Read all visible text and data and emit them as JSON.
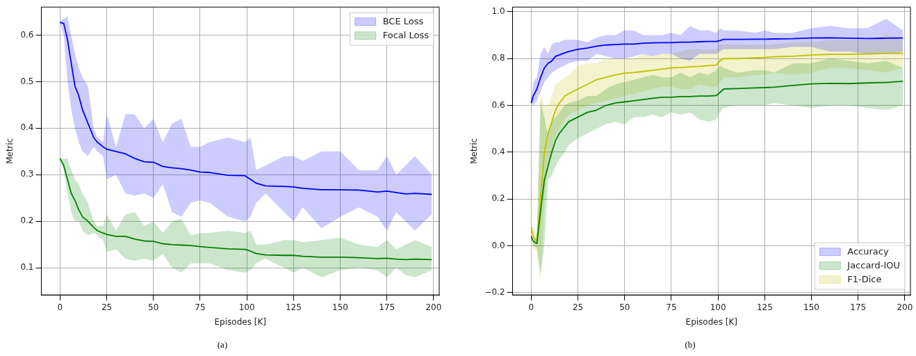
{
  "chart_data": [
    {
      "type": "line",
      "xlabel": "Episodes [K]",
      "ylabel": "Metric",
      "annotations": [
        "(a)"
      ],
      "x": [
        0,
        2,
        4,
        6,
        8,
        10,
        12,
        15,
        18,
        20,
        23,
        25,
        30,
        35,
        40,
        45,
        50,
        55,
        60,
        65,
        70,
        75,
        80,
        90,
        99,
        102,
        105,
        110,
        120,
        125,
        130,
        140,
        150,
        160,
        170,
        175,
        180,
        185,
        190,
        199
      ],
      "series": [
        {
          "name": "BCE Loss",
          "color": "#0000ff",
          "values": [
            0.627,
            0.625,
            0.59,
            0.54,
            0.49,
            0.47,
            0.44,
            0.41,
            0.38,
            0.37,
            0.36,
            0.355,
            0.35,
            0.345,
            0.335,
            0.328,
            0.327,
            0.318,
            0.315,
            0.313,
            0.31,
            0.306,
            0.305,
            0.299,
            0.298,
            0.29,
            0.282,
            0.276,
            0.275,
            0.274,
            0.271,
            0.268,
            0.268,
            0.267,
            0.263,
            0.265,
            0.262,
            0.259,
            0.26,
            0.258
          ],
          "lower": [
            0.627,
            0.6,
            0.5,
            0.44,
            0.4,
            0.37,
            0.35,
            0.34,
            0.36,
            0.35,
            0.34,
            0.29,
            0.3,
            0.26,
            0.255,
            0.26,
            0.25,
            0.28,
            0.22,
            0.21,
            0.24,
            0.245,
            0.24,
            0.21,
            0.2,
            0.21,
            0.24,
            0.26,
            0.22,
            0.2,
            0.23,
            0.185,
            0.21,
            0.23,
            0.21,
            0.18,
            0.22,
            0.2,
            0.18,
            0.215
          ],
          "upper": [
            0.63,
            0.635,
            0.64,
            0.6,
            0.56,
            0.53,
            0.51,
            0.49,
            0.4,
            0.38,
            0.37,
            0.43,
            0.36,
            0.43,
            0.43,
            0.4,
            0.42,
            0.37,
            0.41,
            0.42,
            0.36,
            0.36,
            0.37,
            0.38,
            0.37,
            0.38,
            0.31,
            0.32,
            0.34,
            0.34,
            0.33,
            0.35,
            0.35,
            0.31,
            0.31,
            0.34,
            0.3,
            0.32,
            0.34,
            0.3
          ]
        },
        {
          "name": "Focal Loss",
          "color": "#008000",
          "values": [
            0.335,
            0.32,
            0.29,
            0.26,
            0.245,
            0.225,
            0.21,
            0.2,
            0.187,
            0.18,
            0.175,
            0.172,
            0.168,
            0.168,
            0.162,
            0.158,
            0.157,
            0.152,
            0.15,
            0.149,
            0.148,
            0.146,
            0.144,
            0.141,
            0.14,
            0.136,
            0.131,
            0.128,
            0.127,
            0.127,
            0.125,
            0.123,
            0.123,
            0.122,
            0.12,
            0.121,
            0.119,
            0.118,
            0.119,
            0.118
          ],
          "lower": [
            0.335,
            0.31,
            0.26,
            0.22,
            0.2,
            0.2,
            0.18,
            0.17,
            0.175,
            0.17,
            0.16,
            0.135,
            0.14,
            0.12,
            0.115,
            0.12,
            0.115,
            0.13,
            0.1,
            0.09,
            0.11,
            0.11,
            0.11,
            0.095,
            0.09,
            0.095,
            0.11,
            0.12,
            0.1,
            0.09,
            0.1,
            0.08,
            0.095,
            0.1,
            0.095,
            0.08,
            0.1,
            0.085,
            0.08,
            0.095
          ],
          "upper": [
            0.335,
            0.335,
            0.335,
            0.31,
            0.29,
            0.28,
            0.26,
            0.24,
            0.2,
            0.19,
            0.19,
            0.215,
            0.18,
            0.215,
            0.22,
            0.19,
            0.2,
            0.175,
            0.2,
            0.205,
            0.17,
            0.175,
            0.175,
            0.18,
            0.175,
            0.18,
            0.15,
            0.15,
            0.16,
            0.16,
            0.155,
            0.16,
            0.165,
            0.15,
            0.145,
            0.16,
            0.14,
            0.15,
            0.16,
            0.145
          ]
        }
      ],
      "xlim": [
        -10,
        203
      ],
      "ylim": [
        0.042,
        0.66
      ],
      "xticks": [
        0,
        25,
        50,
        75,
        100,
        125,
        150,
        175,
        200
      ],
      "yticks": [
        0.1,
        0.2,
        0.3,
        0.4,
        0.5,
        0.6
      ],
      "grid": true,
      "legend": "top right",
      "marker": "none",
      "line_style": "solid"
    },
    {
      "type": "line",
      "xlabel": "Episodes [K]",
      "ylabel": "Metric",
      "annotations": [
        "(b)"
      ],
      "x": [
        0,
        1,
        3,
        5,
        7,
        9,
        11,
        13,
        15,
        18,
        20,
        25,
        30,
        35,
        40,
        45,
        50,
        55,
        60,
        65,
        70,
        75,
        80,
        85,
        90,
        95,
        99,
        101,
        103,
        110,
        120,
        125,
        130,
        140,
        150,
        160,
        170,
        180,
        190,
        199
      ],
      "series": [
        {
          "name": "Accuracy",
          "color": "#0000ff",
          "values": [
            0.61,
            0.64,
            0.67,
            0.72,
            0.76,
            0.78,
            0.79,
            0.81,
            0.815,
            0.825,
            0.83,
            0.84,
            0.845,
            0.853,
            0.858,
            0.86,
            0.862,
            0.862,
            0.866,
            0.867,
            0.868,
            0.868,
            0.87,
            0.87,
            0.872,
            0.873,
            0.873,
            0.877,
            0.882,
            0.882,
            0.883,
            0.883,
            0.884,
            0.885,
            0.888,
            0.889,
            0.887,
            0.886,
            0.887,
            0.888
          ],
          "lower": [
            0.61,
            0.6,
            0.62,
            0.66,
            0.7,
            0.72,
            0.74,
            0.75,
            0.76,
            0.77,
            0.78,
            0.79,
            0.79,
            0.82,
            0.81,
            0.8,
            0.8,
            0.81,
            0.82,
            0.81,
            0.82,
            0.82,
            0.8,
            0.79,
            0.82,
            0.82,
            0.82,
            0.83,
            0.84,
            0.84,
            0.84,
            0.84,
            0.84,
            0.85,
            0.85,
            0.83,
            0.83,
            0.82,
            0.82,
            0.83
          ],
          "upper": [
            0.61,
            0.7,
            0.72,
            0.82,
            0.85,
            0.82,
            0.86,
            0.87,
            0.87,
            0.88,
            0.88,
            0.88,
            0.87,
            0.89,
            0.9,
            0.9,
            0.92,
            0.92,
            0.9,
            0.9,
            0.9,
            0.91,
            0.9,
            0.94,
            0.92,
            0.92,
            0.91,
            0.93,
            0.92,
            0.92,
            0.91,
            0.92,
            0.91,
            0.91,
            0.93,
            0.94,
            0.93,
            0.93,
            0.97,
            0.92
          ]
        },
        {
          "name": "Jaccard-IOU",
          "color": "#008000",
          "values": [
            0.04,
            0.02,
            0.01,
            0.15,
            0.28,
            0.34,
            0.4,
            0.45,
            0.48,
            0.51,
            0.53,
            0.55,
            0.57,
            0.58,
            0.6,
            0.61,
            0.615,
            0.62,
            0.625,
            0.63,
            0.635,
            0.635,
            0.638,
            0.638,
            0.64,
            0.64,
            0.642,
            0.655,
            0.67,
            0.672,
            0.675,
            0.676,
            0.678,
            0.685,
            0.692,
            0.694,
            0.693,
            0.696,
            0.698,
            0.703
          ],
          "lower": [
            0.04,
            0.0,
            -0.01,
            -0.12,
            0.0,
            0.28,
            0.3,
            0.34,
            0.37,
            0.4,
            0.43,
            0.46,
            0.48,
            0.5,
            0.52,
            0.53,
            0.52,
            0.55,
            0.55,
            0.56,
            0.55,
            0.57,
            0.56,
            0.57,
            0.54,
            0.53,
            0.54,
            0.57,
            0.59,
            0.6,
            0.6,
            0.6,
            0.61,
            0.6,
            0.59,
            0.6,
            0.6,
            0.59,
            0.58,
            0.6
          ],
          "upper": [
            0.04,
            0.03,
            0.02,
            0.62,
            0.55,
            0.47,
            0.53,
            0.55,
            0.57,
            0.6,
            0.61,
            0.62,
            0.64,
            0.64,
            0.67,
            0.69,
            0.7,
            0.71,
            0.72,
            0.73,
            0.72,
            0.72,
            0.74,
            0.72,
            0.74,
            0.73,
            0.75,
            0.77,
            0.76,
            0.74,
            0.75,
            0.75,
            0.74,
            0.78,
            0.78,
            0.8,
            0.79,
            0.78,
            0.79,
            0.76
          ]
        },
        {
          "name": "F1-Dice",
          "color": "#bfbf00",
          "values": [
            0.08,
            0.04,
            0.02,
            0.2,
            0.4,
            0.48,
            0.53,
            0.58,
            0.61,
            0.64,
            0.65,
            0.67,
            0.69,
            0.71,
            0.72,
            0.73,
            0.738,
            0.74,
            0.745,
            0.75,
            0.755,
            0.76,
            0.762,
            0.765,
            0.767,
            0.77,
            0.772,
            0.79,
            0.8,
            0.8,
            0.803,
            0.805,
            0.808,
            0.81,
            0.815,
            0.818,
            0.818,
            0.82,
            0.822,
            0.823
          ],
          "lower": [
            0.08,
            -0.01,
            -0.02,
            -0.15,
            0.2,
            0.34,
            0.42,
            0.47,
            0.5,
            0.54,
            0.56,
            0.58,
            0.6,
            0.61,
            0.62,
            0.63,
            0.64,
            0.65,
            0.66,
            0.67,
            0.68,
            0.68,
            0.67,
            0.67,
            0.69,
            0.68,
            0.68,
            0.7,
            0.72,
            0.72,
            0.73,
            0.73,
            0.74,
            0.73,
            0.74,
            0.76,
            0.76,
            0.75,
            0.74,
            0.76
          ],
          "upper": [
            0.08,
            0.08,
            0.05,
            0.65,
            0.6,
            0.6,
            0.64,
            0.69,
            0.7,
            0.72,
            0.73,
            0.77,
            0.78,
            0.78,
            0.8,
            0.8,
            0.8,
            0.8,
            0.82,
            0.81,
            0.82,
            0.82,
            0.83,
            0.84,
            0.84,
            0.84,
            0.84,
            0.86,
            0.86,
            0.86,
            0.86,
            0.86,
            0.86,
            0.87,
            0.87,
            0.88,
            0.88,
            0.88,
            0.9,
            0.89
          ]
        }
      ],
      "xlim": [
        -10,
        203
      ],
      "ylim": [
        -0.21,
        1.02
      ],
      "xticks": [
        0,
        25,
        50,
        75,
        100,
        125,
        150,
        175,
        200
      ],
      "yticks": [
        {
          "value": -0.2,
          "label": "−0.2"
        },
        {
          "value": 0,
          "label": "0.0"
        },
        0.2,
        0.4,
        0.6,
        0.8,
        {
          "value": 1,
          "label": "1.0"
        }
      ],
      "grid": true,
      "legend": "bottom right",
      "marker": "none",
      "line_style": "solid"
    }
  ]
}
